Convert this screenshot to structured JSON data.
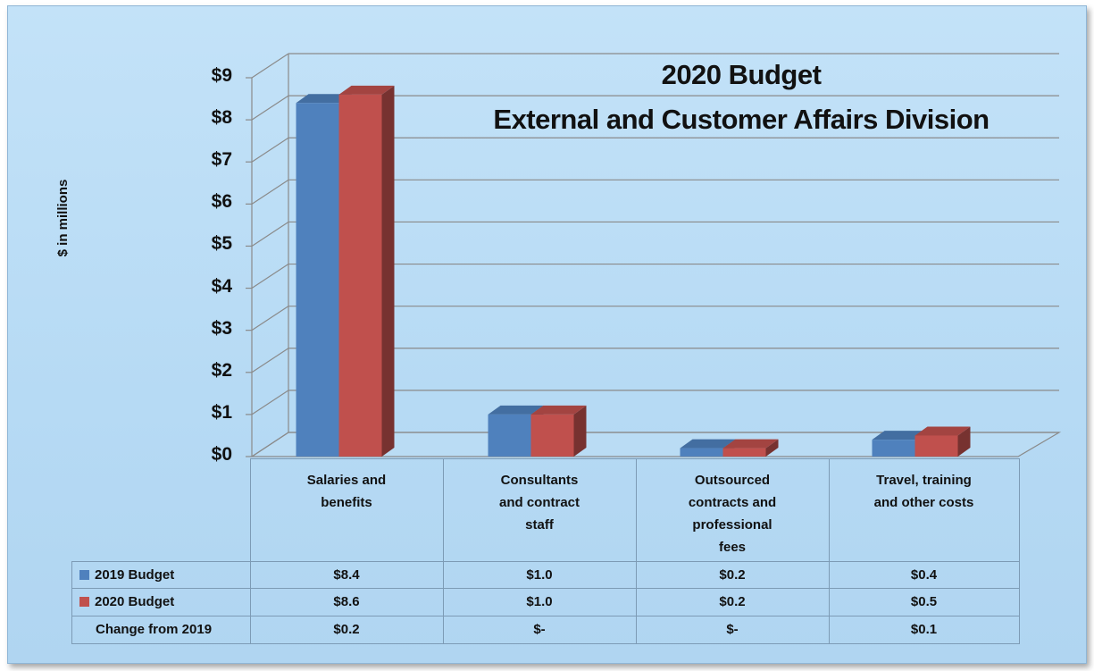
{
  "chart_data": {
    "type": "bar",
    "title": "2020 Budget",
    "subtitle": "External and Customer Affairs Division",
    "ylabel": "$ in millions",
    "xlabel": "",
    "ylim": [
      0,
      9
    ],
    "yticks": [
      "$0",
      "$1",
      "$2",
      "$3",
      "$4",
      "$5",
      "$6",
      "$7",
      "$8",
      "$9"
    ],
    "categories": [
      "Salaries and benefits",
      "Consultants and contract staff",
      "Outsourced contracts and professional fees",
      "Travel, training and other costs"
    ],
    "category_lines": [
      [
        "Salaries and",
        "benefits"
      ],
      [
        "Consultants",
        "and contract",
        "staff"
      ],
      [
        "Outsourced",
        "contracts and",
        "professional",
        "fees"
      ],
      [
        "Travel, training",
        "and other costs"
      ]
    ],
    "series": [
      {
        "name": "2019 Budget",
        "values": [
          8.4,
          1.0,
          0.2,
          0.4
        ],
        "labels": [
          "$8.4",
          "$1.0",
          "$0.2",
          "$0.4"
        ],
        "color": "#4f81bd"
      },
      {
        "name": "2020 Budget",
        "values": [
          8.6,
          1.0,
          0.2,
          0.5
        ],
        "labels": [
          "$8.6",
          "$1.0",
          "$0.2",
          "$0.5"
        ],
        "color": "#c0504d"
      }
    ],
    "change_row": {
      "name": "Change from 2019",
      "labels": [
        "$0.2",
        "$-",
        "$-",
        "$0.1"
      ]
    },
    "grid": true,
    "legend": "data table"
  }
}
